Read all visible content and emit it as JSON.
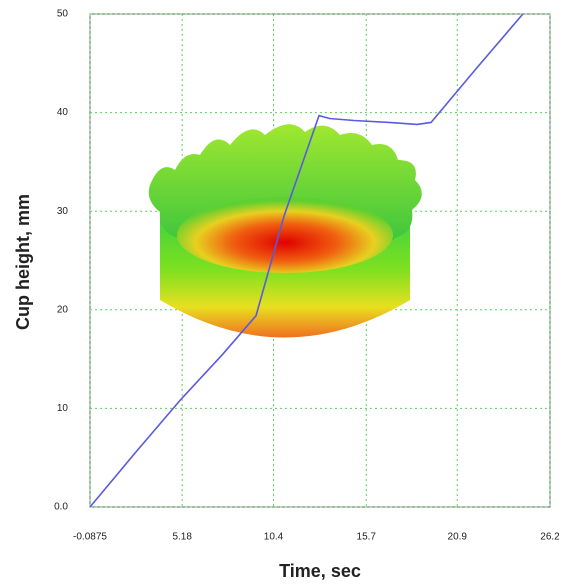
{
  "chart_data": {
    "type": "line",
    "x_label": "Time, sec",
    "y_label": "Cup height, mm",
    "xlim": [
      -0.0875,
      26.2
    ],
    "xticks": [
      -0.0875,
      5.18,
      10.4,
      15.7,
      20.9,
      26.2
    ],
    "ylim": [
      0,
      50
    ],
    "yticks": [
      {
        "value": 0,
        "label": "0.0"
      },
      10,
      20,
      30,
      40,
      50
    ],
    "grid": true,
    "series": [
      {
        "color": "#5a5ae0",
        "x": [
          -0.0875,
          2.5,
          5.1,
          7.5,
          9.4,
          11.0,
          13.0,
          13.6,
          15.0,
          17.0,
          18.6,
          19.4,
          22.0,
          24.65
        ],
        "values": [
          0,
          5.5,
          10.9,
          15.5,
          19.4,
          29.5,
          39.7,
          39.4,
          39.2,
          39.0,
          38.8,
          39.0,
          44.5,
          50
        ]
      }
    ]
  }
}
